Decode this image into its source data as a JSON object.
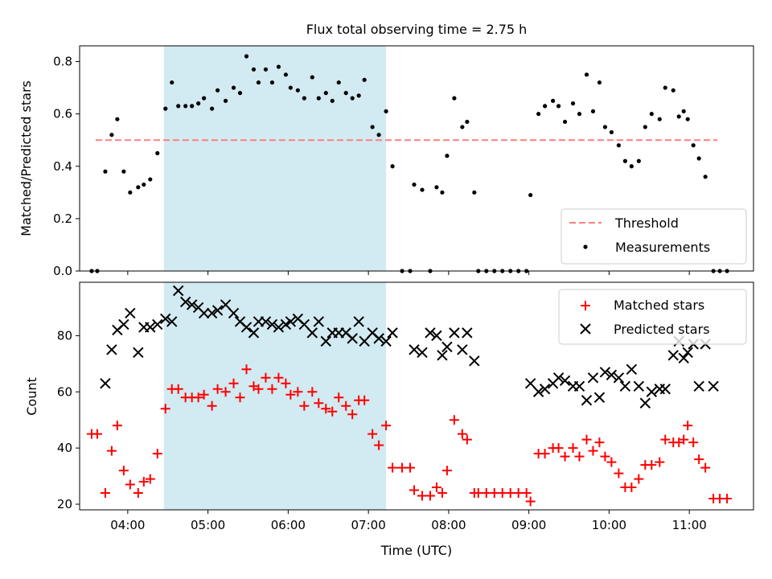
{
  "title": "Flux total observing time = 2.75 h",
  "chart_data": [
    {
      "type": "scatter",
      "ylabel": "Matched/Predicted stars",
      "xlabel": "",
      "xlim": [
        3.4,
        11.8
      ],
      "ylim": [
        0,
        0.86
      ],
      "yticks": [
        "0.0",
        "0.2",
        "0.4",
        "0.6",
        "0.8"
      ],
      "ytick_values": [
        0,
        0.2,
        0.4,
        0.6,
        0.8
      ],
      "grid": false,
      "legend_position": "lower-right",
      "shaded_interval": {
        "x": [
          4.45,
          7.22
        ],
        "color": "#add8e6"
      },
      "threshold": {
        "name": "Threshold",
        "value": 0.5,
        "x": [
          3.6,
          11.35
        ],
        "color": "#ff7f7f",
        "style": "dashed"
      },
      "measurements": {
        "name": "Measurements",
        "color": "#000000",
        "x": [
          3.55,
          3.62,
          3.72,
          3.8,
          3.87,
          3.95,
          4.03,
          4.13,
          4.2,
          4.28,
          4.37,
          4.47,
          4.55,
          4.63,
          4.72,
          4.8,
          4.88,
          4.95,
          5.05,
          5.12,
          5.22,
          5.32,
          5.4,
          5.48,
          5.57,
          5.63,
          5.72,
          5.8,
          5.88,
          5.97,
          6.03,
          6.12,
          6.2,
          6.3,
          6.38,
          6.47,
          6.55,
          6.63,
          6.72,
          6.8,
          6.88,
          6.95,
          7.05,
          7.13,
          7.22,
          7.3,
          7.42,
          7.52,
          7.57,
          7.67,
          7.77,
          7.85,
          7.92,
          7.98,
          8.07,
          8.17,
          8.23,
          8.32,
          8.37,
          8.47,
          8.57,
          8.67,
          8.77,
          8.87,
          8.97,
          9.02,
          9.12,
          9.2,
          9.3,
          9.37,
          9.45,
          9.55,
          9.63,
          9.72,
          9.8,
          9.88,
          9.95,
          10.03,
          10.12,
          10.2,
          10.28,
          10.37,
          10.45,
          10.53,
          10.63,
          10.7,
          10.8,
          10.87,
          10.93,
          10.98,
          11.05,
          11.12,
          11.2,
          11.3,
          11.38,
          11.47
        ],
        "y": [
          0,
          0,
          0.38,
          0.52,
          0.58,
          0.38,
          0.3,
          0.32,
          0.33,
          0.35,
          0.45,
          0.62,
          0.72,
          0.63,
          0.63,
          0.63,
          0.64,
          0.66,
          0.62,
          0.69,
          0.65,
          0.7,
          0.68,
          0.82,
          0.77,
          0.72,
          0.77,
          0.72,
          0.78,
          0.75,
          0.7,
          0.69,
          0.66,
          0.74,
          0.66,
          0.68,
          0.65,
          0.72,
          0.68,
          0.66,
          0.67,
          0.73,
          0.55,
          0.52,
          0.61,
          0.4,
          0,
          0,
          0.33,
          0.31,
          0,
          0.32,
          0.3,
          0.44,
          0.66,
          0.55,
          0.57,
          0.3,
          0,
          0,
          0,
          0,
          0,
          0,
          0,
          0.29,
          0.6,
          0.63,
          0.65,
          0.63,
          0.57,
          0.64,
          0.6,
          0.75,
          0.61,
          0.72,
          0.55,
          0.53,
          0.48,
          0.42,
          0.4,
          0.42,
          0.55,
          0.6,
          0.58,
          0.7,
          0.69,
          0.59,
          0.61,
          0.58,
          0.48,
          0.43,
          0.36,
          0,
          0,
          0
        ]
      }
    },
    {
      "type": "scatter",
      "ylabel": "Count",
      "xlabel": "Time (UTC)",
      "xlim": [
        3.4,
        11.8
      ],
      "ylim": [
        18,
        99
      ],
      "yticks": [
        "20",
        "40",
        "60",
        "80"
      ],
      "ytick_values": [
        20,
        40,
        60,
        80
      ],
      "xticks": [
        "04:00",
        "05:00",
        "06:00",
        "07:00",
        "08:00",
        "09:00",
        "10:00",
        "11:00"
      ],
      "xtick_values": [
        4,
        5,
        6,
        7,
        8,
        9,
        10,
        11
      ],
      "grid": false,
      "legend_position": "upper-right",
      "shaded_interval": {
        "x": [
          4.45,
          7.22
        ],
        "color": "#add8e6"
      },
      "series": [
        {
          "name": "Matched stars",
          "marker": "+",
          "color": "#ff0000",
          "x": [
            3.55,
            3.62,
            3.72,
            3.8,
            3.87,
            3.95,
            4.03,
            4.13,
            4.2,
            4.28,
            4.37,
            4.47,
            4.55,
            4.63,
            4.72,
            4.8,
            4.88,
            4.95,
            5.05,
            5.12,
            5.22,
            5.32,
            5.4,
            5.48,
            5.57,
            5.63,
            5.72,
            5.8,
            5.88,
            5.97,
            6.03,
            6.12,
            6.2,
            6.3,
            6.38,
            6.47,
            6.55,
            6.63,
            6.72,
            6.8,
            6.88,
            6.95,
            7.05,
            7.13,
            7.22,
            7.3,
            7.42,
            7.52,
            7.57,
            7.67,
            7.77,
            7.85,
            7.92,
            7.98,
            8.07,
            8.17,
            8.23,
            8.32,
            8.37,
            8.47,
            8.57,
            8.67,
            8.77,
            8.87,
            8.97,
            9.02,
            9.12,
            9.2,
            9.3,
            9.37,
            9.45,
            9.55,
            9.63,
            9.72,
            9.8,
            9.88,
            9.95,
            10.03,
            10.12,
            10.2,
            10.28,
            10.37,
            10.45,
            10.53,
            10.63,
            10.7,
            10.8,
            10.87,
            10.93,
            10.98,
            11.05,
            11.12,
            11.2,
            11.3,
            11.38,
            11.47
          ],
          "y": [
            45,
            45,
            24,
            39,
            48,
            32,
            27,
            24,
            28,
            29,
            38,
            54,
            61,
            61,
            58,
            58,
            58,
            59,
            55,
            61,
            60,
            63,
            58,
            68,
            62,
            61,
            65,
            61,
            65,
            63,
            59,
            60,
            55,
            60,
            56,
            54,
            53,
            58,
            55,
            52,
            57,
            57,
            45,
            41,
            48,
            33,
            33,
            33,
            25,
            23,
            23,
            26,
            24,
            32,
            50,
            45,
            43,
            24,
            24,
            24,
            24,
            24,
            24,
            24,
            24,
            21,
            38,
            38,
            40,
            40,
            37,
            40,
            37,
            43,
            39,
            42,
            37,
            35,
            31,
            26,
            26,
            29,
            34,
            34,
            35,
            43,
            42,
            42,
            43,
            48,
            42,
            36,
            33,
            22,
            22,
            22
          ]
        },
        {
          "name": "Predicted stars",
          "marker": "x",
          "color": "#000000",
          "x": [
            3.72,
            3.8,
            3.87,
            3.95,
            4.03,
            4.13,
            4.2,
            4.28,
            4.37,
            4.47,
            4.55,
            4.63,
            4.72,
            4.8,
            4.88,
            4.95,
            5.05,
            5.12,
            5.22,
            5.32,
            5.4,
            5.48,
            5.57,
            5.63,
            5.72,
            5.8,
            5.88,
            5.97,
            6.03,
            6.12,
            6.2,
            6.3,
            6.38,
            6.47,
            6.55,
            6.63,
            6.72,
            6.8,
            6.88,
            6.95,
            7.05,
            7.13,
            7.22,
            7.3,
            7.57,
            7.67,
            7.77,
            7.85,
            7.92,
            7.98,
            8.07,
            8.17,
            8.23,
            8.32,
            9.02,
            9.12,
            9.2,
            9.3,
            9.37,
            9.45,
            9.55,
            9.63,
            9.72,
            9.8,
            9.88,
            9.95,
            10.03,
            10.12,
            10.2,
            10.28,
            10.37,
            10.45,
            10.53,
            10.63,
            10.7,
            10.8,
            10.87,
            10.93,
            10.98,
            11.05,
            11.12,
            11.2,
            11.3
          ],
          "y": [
            63,
            75,
            82,
            84,
            88,
            74,
            83,
            83,
            84,
            86,
            85,
            96,
            92,
            91,
            90,
            88,
            88,
            89,
            91,
            88,
            85,
            83,
            81,
            85,
            85,
            84,
            83,
            84,
            85,
            86,
            84,
            81,
            85,
            78,
            81,
            81,
            81,
            79,
            85,
            78,
            81,
            79,
            78,
            81,
            75,
            74,
            81,
            80,
            73,
            76,
            81,
            75,
            81,
            71,
            63,
            60,
            61,
            63,
            65,
            64,
            62,
            62,
            57,
            65,
            58,
            67,
            66,
            65,
            62,
            68,
            62,
            56,
            60,
            61,
            61,
            73,
            78,
            72,
            74,
            77,
            62,
            77,
            62
          ]
        }
      ]
    }
  ]
}
